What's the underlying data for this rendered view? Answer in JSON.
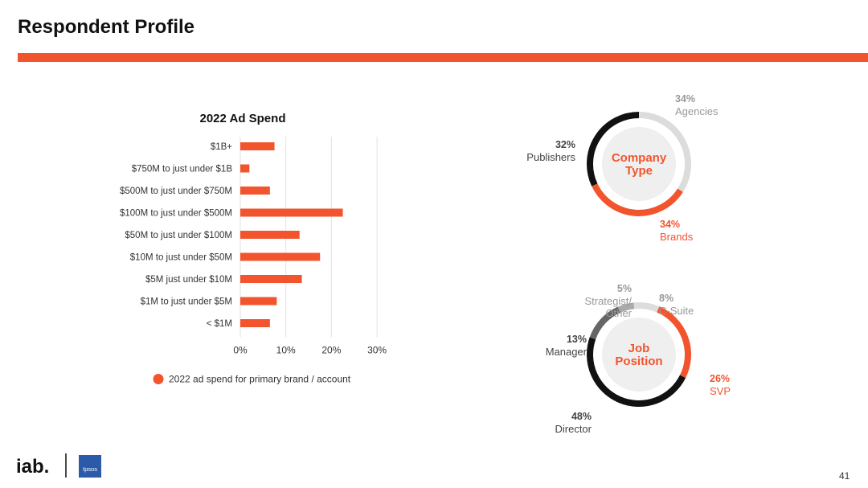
{
  "page": {
    "title": "Respondent Profile",
    "page_number": "41",
    "accent_color": "#f2542d",
    "logos": {
      "iab": "iab.",
      "ipsos": "Ipsos"
    }
  },
  "chart_data": [
    {
      "type": "bar",
      "orientation": "horizontal",
      "title": "2022 Ad Spend",
      "categories": [
        "$1B+",
        "$750M to just under $1B",
        "$500M to just under $750M",
        "$100M to just under $500M",
        "$50M to just under $100M",
        "$10M to just under $50M",
        "$5M just under $10M",
        "$1M to just under $5M",
        "< $1M"
      ],
      "series": [
        {
          "name": "2022 ad spend for primary brand / account",
          "values": [
            7.5,
            2,
            6.5,
            22.5,
            13,
            17.5,
            13.5,
            8,
            6.5
          ],
          "color": "#f2542d"
        }
      ],
      "xlim": [
        0,
        30
      ],
      "xticks": [
        "0%",
        "10%",
        "20%",
        "30%"
      ],
      "grid": true,
      "legend": "bottom"
    },
    {
      "type": "pie",
      "variant": "donut",
      "center_label": "Company\nType",
      "slices": [
        {
          "name": "Agencies",
          "value": 34,
          "label": "34%",
          "color": "#dcdcdc"
        },
        {
          "name": "Brands",
          "value": 34,
          "label": "34%",
          "color": "#f2542d"
        },
        {
          "name": "Publishers",
          "value": 32,
          "label": "32%",
          "color": "#111111"
        }
      ]
    },
    {
      "type": "pie",
      "variant": "donut",
      "center_label": "Job\nPosition",
      "slices": [
        {
          "name": "SVP",
          "value": 26,
          "label": "26%",
          "color": "#f2542d"
        },
        {
          "name": "Director",
          "value": 48,
          "label": "48%",
          "color": "#111111"
        },
        {
          "name": "Manager",
          "value": 13,
          "label": "13%",
          "color": "#666666"
        },
        {
          "name": "Strategist/\nOther",
          "value": 5,
          "label": "5%",
          "color": "#aaaaaa"
        },
        {
          "name": "C-Suite",
          "value": 8,
          "label": "8%",
          "color": "#dddddd"
        }
      ]
    }
  ]
}
